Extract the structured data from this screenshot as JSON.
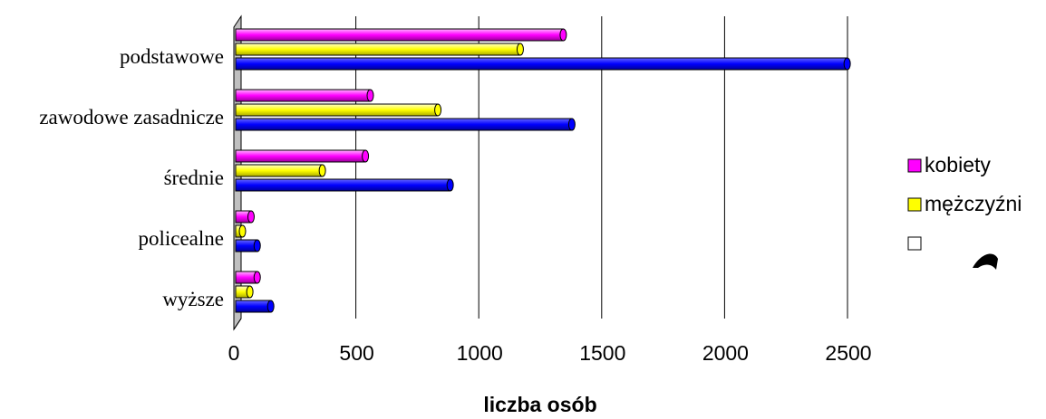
{
  "chart_data": {
    "type": "bar",
    "orientation": "horizontal",
    "categories": [
      "podstawowe",
      "zawodowe zasadnicze",
      "średnie",
      "policealne",
      "wyższe"
    ],
    "series": [
      {
        "name": "kobiety",
        "color": "#ff00ff",
        "values": [
          1340,
          555,
          535,
          70,
          95
        ]
      },
      {
        "name": "mężczyźni",
        "color": "#ffff00",
        "values": [
          1165,
          830,
          360,
          35,
          65
        ]
      },
      {
        "name": "",
        "color": "#0000ff",
        "values": [
          2495,
          1375,
          880,
          95,
          150
        ]
      }
    ],
    "xlabel": "liczba osób",
    "ylabel": "",
    "xlim": [
      0,
      2500
    ],
    "xticks": [
      "0",
      "500",
      "1000",
      "1500",
      "2000",
      "2500"
    ],
    "grid": "vertical",
    "legend_position": "right"
  }
}
